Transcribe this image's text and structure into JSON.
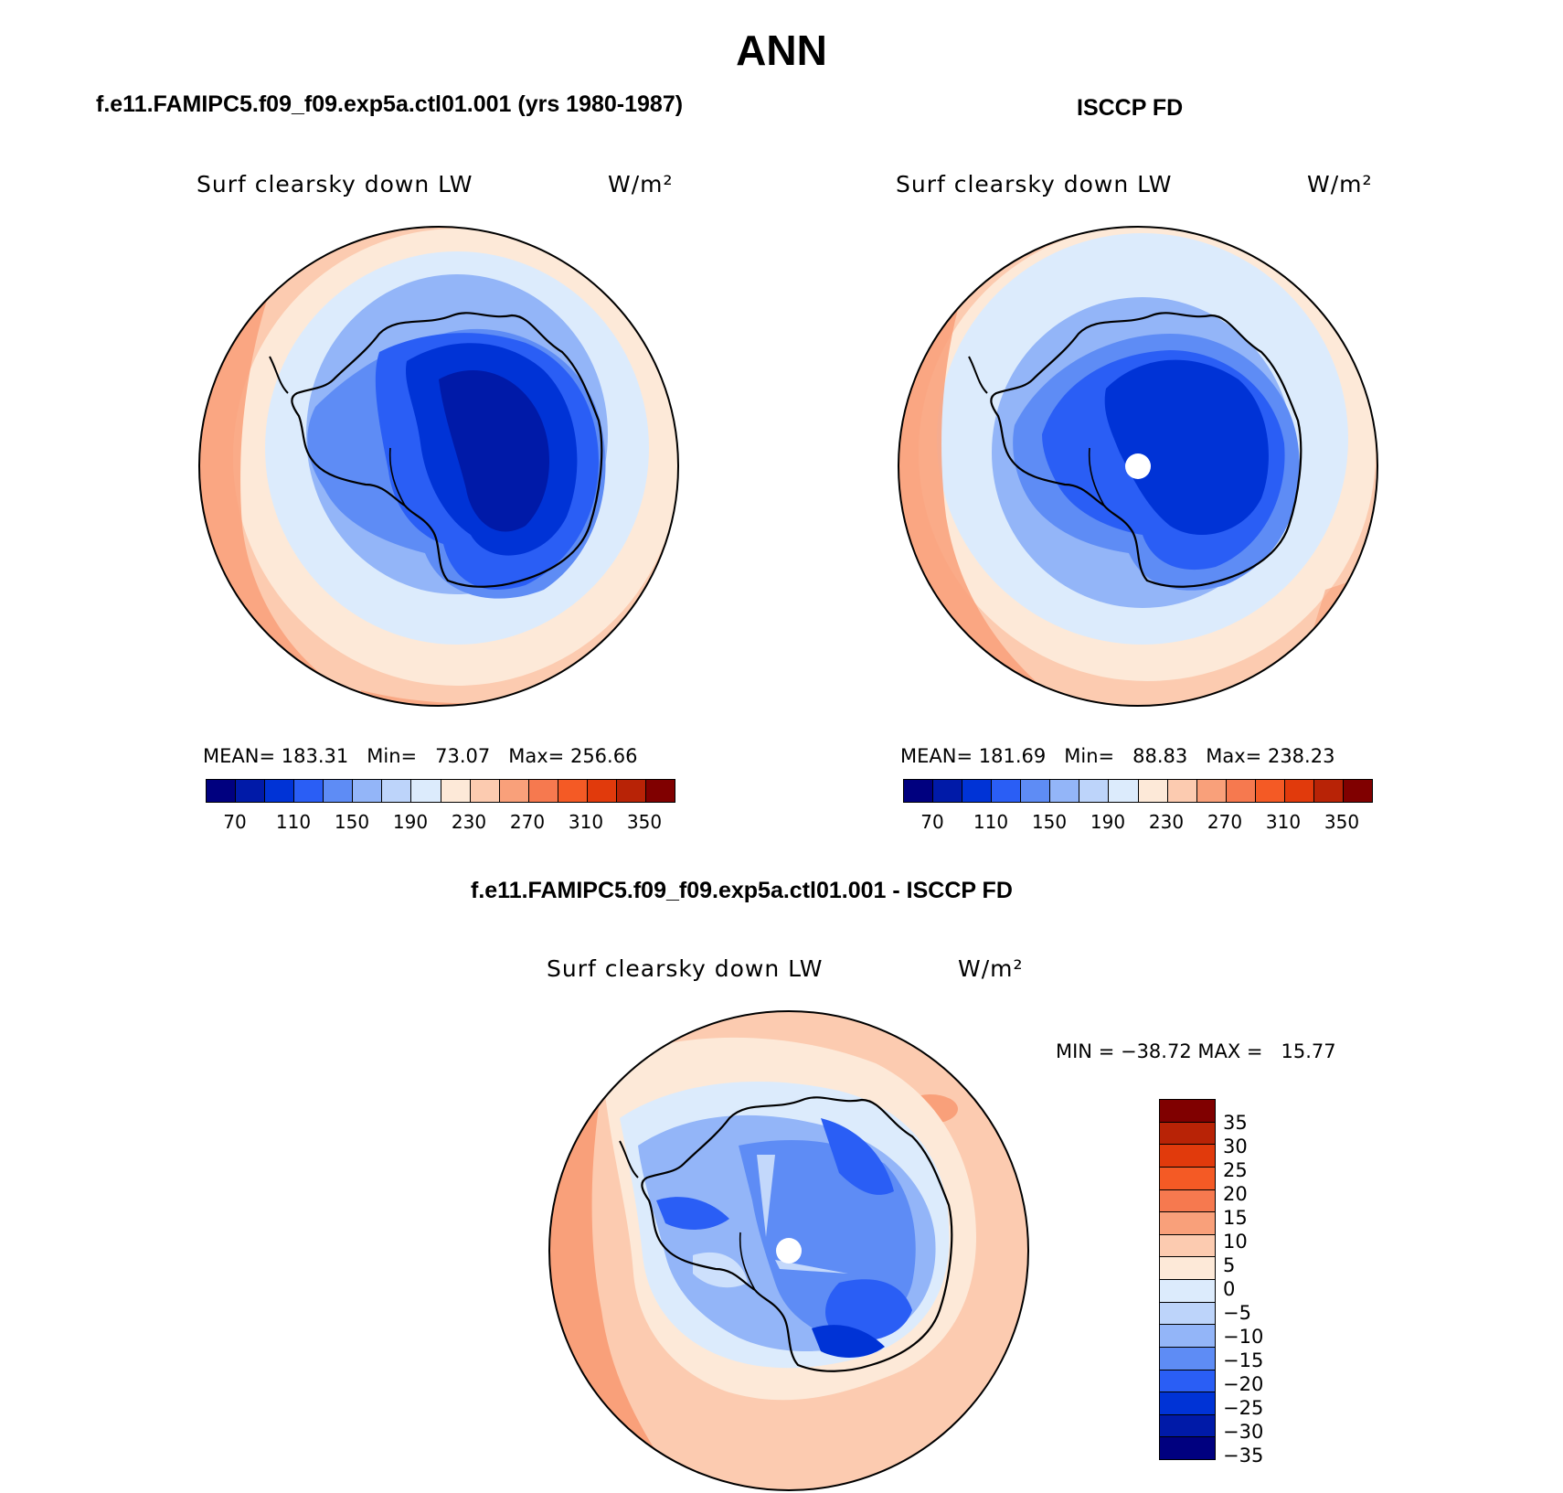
{
  "figure": {
    "title": "ANN"
  },
  "panels": [
    {
      "title": "f.e11.FAMIPC5.f09_f09.exp5a.ctl01.001 (yrs 1980-1987)",
      "variable": "Surf clearsky down LW",
      "units": "W/m²",
      "stats": "MEAN= 183.31   Min=   73.07   Max= 256.66",
      "colorbar_ticks": [
        "70",
        "110",
        "150",
        "190",
        "230",
        "270",
        "310",
        "350"
      ]
    },
    {
      "title": "ISCCP FD",
      "variable": "Surf clearsky down LW",
      "units": "W/m²",
      "stats": "MEAN= 181.69   Min=   88.83   Max= 238.23",
      "colorbar_ticks": [
        "70",
        "110",
        "150",
        "190",
        "230",
        "270",
        "310",
        "350"
      ]
    },
    {
      "title": "f.e11.FAMIPC5.f09_f09.exp5a.ctl01.001 - ISCCP FD",
      "variable": "Surf clearsky down LW",
      "units": "W/m²",
      "stats": "MIN = −38.72 MAX =   15.77",
      "colorbar_ticks": [
        "35",
        "30",
        "25",
        "20",
        "15",
        "10",
        "5",
        "0",
        "−5",
        "−10",
        "−15",
        "−20",
        "−25",
        "−30",
        "−35"
      ]
    }
  ],
  "colors": {
    "abs_scale": [
      "#00007f",
      "#001aa8",
      "#0033d6",
      "#2a5ef5",
      "#5e8cf5",
      "#93b5f8",
      "#bdd4fa",
      "#dcebfc",
      "#fde9d8",
      "#fccbb0",
      "#f9a07a",
      "#f6794f",
      "#f45a25",
      "#e13a0c",
      "#b82306",
      "#800000"
    ],
    "diff_scale": [
      "#800000",
      "#b82306",
      "#e13a0c",
      "#f45a25",
      "#f6794f",
      "#f9a07a",
      "#fccbb0",
      "#fde9d8",
      "#dcebfc",
      "#bdd4fa",
      "#93b5f8",
      "#5e8cf5",
      "#2a5ef5",
      "#0033d6",
      "#001aa8",
      "#00007f"
    ]
  }
}
